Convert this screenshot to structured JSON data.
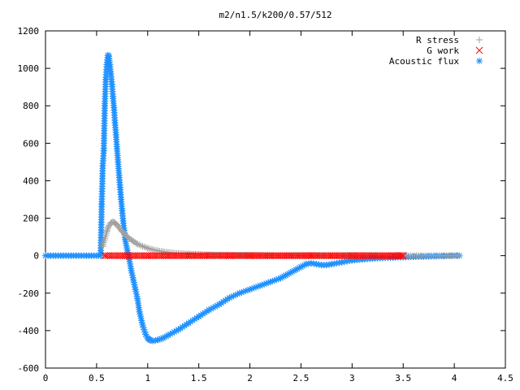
{
  "chart_data": {
    "type": "scatter",
    "title": "m2/n1.5/k200/0.57/512",
    "xlabel": "",
    "ylabel": "",
    "xlim": [
      0,
      4.5
    ],
    "ylim": [
      -600,
      1200
    ],
    "xticks": [
      "0",
      "0.5",
      "1",
      "1.5",
      "2",
      "2.5",
      "3",
      "3.5",
      "4",
      "4.5"
    ],
    "yticks": [
      "-600",
      "-400",
      "-200",
      "0",
      "200",
      "400",
      "600",
      "800",
      "1000",
      "1200"
    ],
    "legend_position": "top-right",
    "grid": false,
    "series": [
      {
        "name": "R stress",
        "marker": "plus",
        "color": "#a0a0a0",
        "x": [
          0.56,
          0.58,
          0.6,
          0.62,
          0.64,
          0.66,
          0.68,
          0.7,
          0.72,
          0.75,
          0.78,
          0.8,
          0.85,
          0.9,
          0.95,
          1.0,
          1.05,
          1.1,
          1.15,
          1.2,
          1.3,
          1.4,
          1.5,
          1.6,
          1.8,
          2.0,
          2.3,
          2.6,
          3.0,
          3.5,
          4.0,
          4.05
        ],
        "y": [
          50,
          90,
          130,
          160,
          175,
          180,
          175,
          165,
          150,
          130,
          112,
          100,
          80,
          62,
          50,
          40,
          32,
          26,
          21,
          17,
          12,
          9,
          7,
          5,
          3,
          2,
          1,
          1,
          0,
          0,
          0,
          0
        ]
      },
      {
        "name": "G work",
        "marker": "cross",
        "color": "#ff0000",
        "x": [
          0.58,
          0.8,
          1.0,
          1.2,
          1.4,
          1.6,
          1.8,
          2.0,
          2.2,
          2.4,
          2.6,
          2.8,
          3.0,
          3.2,
          3.4,
          3.5
        ],
        "y": [
          0,
          0,
          0,
          0,
          0,
          0,
          0,
          0,
          0,
          0,
          0,
          0,
          0,
          0,
          0,
          0
        ]
      },
      {
        "name": "Acoustic flux",
        "marker": "star",
        "color": "#1e90ff",
        "x": [
          0.0,
          0.05,
          0.1,
          0.15,
          0.2,
          0.25,
          0.3,
          0.35,
          0.4,
          0.45,
          0.5,
          0.54,
          0.55,
          0.56,
          0.57,
          0.58,
          0.59,
          0.6,
          0.61,
          0.62,
          0.63,
          0.64,
          0.65,
          0.66,
          0.67,
          0.68,
          0.69,
          0.7,
          0.71,
          0.72,
          0.73,
          0.74,
          0.75,
          0.76,
          0.77,
          0.78,
          0.8,
          0.82,
          0.84,
          0.86,
          0.88,
          0.9,
          0.92,
          0.95,
          0.98,
          1.0,
          1.02,
          1.05,
          1.1,
          1.15,
          1.2,
          1.3,
          1.4,
          1.5,
          1.6,
          1.7,
          1.8,
          1.9,
          2.0,
          2.1,
          2.2,
          2.3,
          2.35,
          2.4,
          2.45,
          2.5,
          2.55,
          2.6,
          2.65,
          2.7,
          2.75,
          2.8,
          2.9,
          3.0,
          3.1,
          3.2,
          3.3,
          3.4,
          3.5,
          3.6,
          3.7,
          3.8,
          3.9,
          4.0,
          4.05
        ],
        "y": [
          0,
          0,
          0,
          0,
          0,
          0,
          0,
          0,
          0,
          0,
          0,
          0,
          275,
          480,
          560,
          800,
          940,
          1020,
          1070,
          1065,
          1020,
          970,
          915,
          850,
          790,
          710,
          645,
          570,
          500,
          430,
          365,
          300,
          240,
          185,
          135,
          85,
          30,
          -20,
          -80,
          -130,
          -180,
          -230,
          -300,
          -370,
          -420,
          -440,
          -450,
          -455,
          -450,
          -440,
          -425,
          -395,
          -360,
          -325,
          -290,
          -260,
          -225,
          -200,
          -180,
          -160,
          -140,
          -120,
          -105,
          -90,
          -75,
          -60,
          -45,
          -40,
          -45,
          -50,
          -50,
          -45,
          -35,
          -25,
          -20,
          -15,
          -12,
          -10,
          -8,
          -6,
          -5,
          -3,
          -2,
          0,
          0
        ]
      }
    ]
  }
}
